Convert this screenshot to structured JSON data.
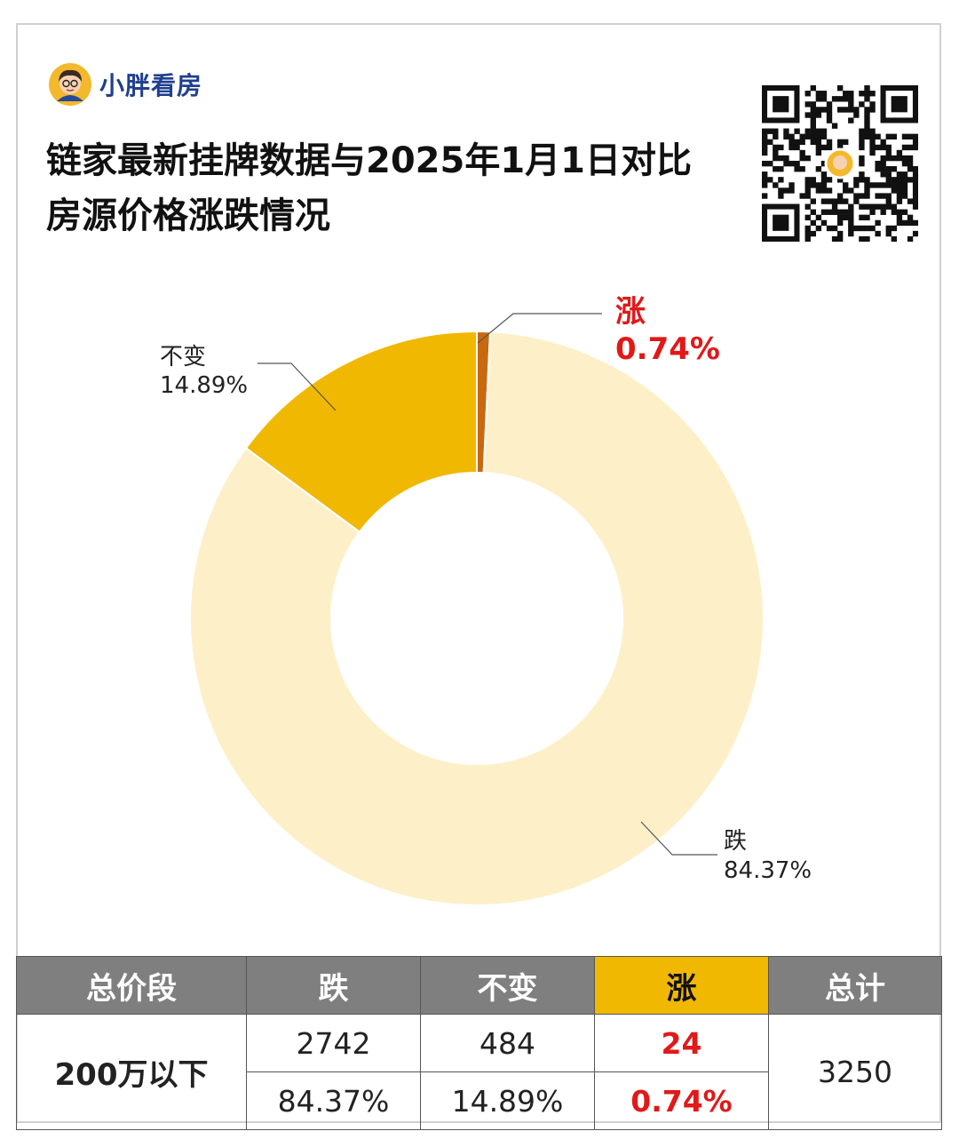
{
  "brand": {
    "name": "小胖看房"
  },
  "title": {
    "line1": "链家最新挂牌数据与2025年1月1日对比",
    "line2": "房源价格涨跌情况"
  },
  "colors": {
    "fall": "#fdf0c8",
    "flat": "#f0b800",
    "rise": "#c8690f",
    "red": "#e01919",
    "label": "#222222"
  },
  "chart_data": {
    "type": "pie",
    "donut": true,
    "title": "房源价格涨跌情况",
    "slices": [
      {
        "name": "涨",
        "value": 0.74,
        "label": "0.74%",
        "color": "#c8690f",
        "highlight": true
      },
      {
        "name": "跌",
        "value": 84.37,
        "label": "84.37%",
        "color": "#fdf0c8",
        "highlight": false
      },
      {
        "name": "不变",
        "value": 14.89,
        "label": "14.89%",
        "color": "#f0b800",
        "highlight": false
      }
    ]
  },
  "table": {
    "headers": [
      "总价段",
      "跌",
      "不变",
      "涨",
      "总计"
    ],
    "tier": "200万以下",
    "counts": {
      "fall": "2742",
      "flat": "484",
      "rise": "24"
    },
    "percents": {
      "fall": "84.37%",
      "flat": "14.89%",
      "rise": "0.74%"
    },
    "total": "3250"
  }
}
